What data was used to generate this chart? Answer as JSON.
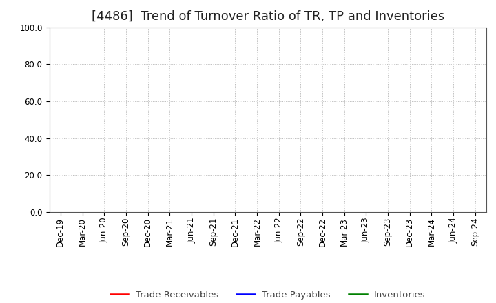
{
  "title": "[4486]  Trend of Turnover Ratio of TR, TP and Inventories",
  "ylim": [
    0,
    100
  ],
  "yticks": [
    0.0,
    20.0,
    40.0,
    60.0,
    80.0,
    100.0
  ],
  "x_labels": [
    "Dec-19",
    "Mar-20",
    "Jun-20",
    "Sep-20",
    "Dec-20",
    "Mar-21",
    "Jun-21",
    "Sep-21",
    "Dec-21",
    "Mar-22",
    "Jun-22",
    "Sep-22",
    "Dec-22",
    "Mar-23",
    "Jun-23",
    "Sep-23",
    "Dec-23",
    "Mar-24",
    "Jun-24",
    "Sep-24"
  ],
  "series": [
    {
      "label": "Trade Receivables",
      "color": "#ff0000"
    },
    {
      "label": "Trade Payables",
      "color": "#0000ff"
    },
    {
      "label": "Inventories",
      "color": "#008000"
    }
  ],
  "background_color": "#ffffff",
  "grid_color": "#bbbbbb",
  "title_fontsize": 13,
  "axis_fontsize": 8.5,
  "legend_fontsize": 9.5
}
